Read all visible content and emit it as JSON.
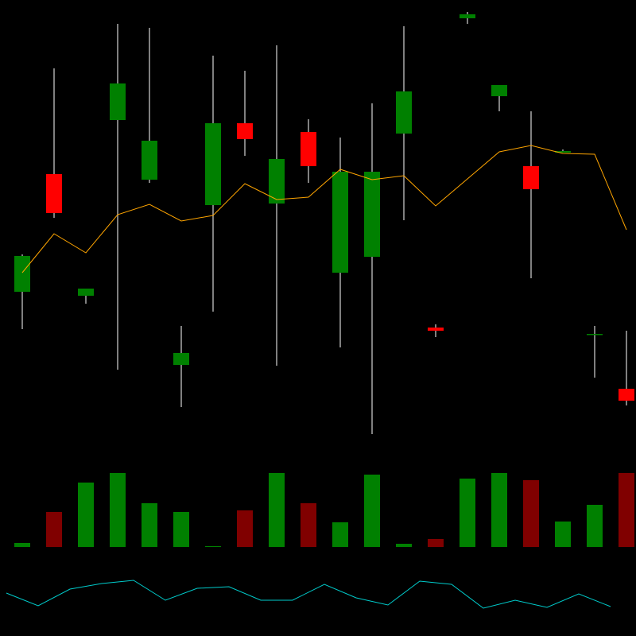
{
  "chart_data": [
    {
      "type": "candlestick",
      "up_color": "#008000",
      "down_color": "#ff0000",
      "wick_color": "#aaaaaa",
      "ylim": [
        0,
        560
      ],
      "open": [
        193,
        341,
        188,
        409,
        334,
        101,
        302,
        405,
        304,
        394,
        217,
        237,
        392,
        148,
        537,
        439,
        351,
        368,
        140,
        71
      ],
      "high": [
        240,
        474,
        197,
        530,
        525,
        150,
        490,
        471,
        503,
        410,
        387,
        430,
        527,
        152,
        545,
        453,
        420,
        372,
        150,
        144
      ],
      "low": [
        146,
        286,
        178,
        95,
        330,
        48,
        168,
        364,
        100,
        330,
        123,
        14,
        283,
        136,
        530,
        420,
        210,
        368,
        85,
        50
      ],
      "close": [
        238,
        292,
        197,
        455,
        383,
        116,
        405,
        385,
        360,
        351,
        344,
        344,
        445,
        144,
        542,
        453,
        322,
        370,
        140,
        56
      ],
      "series": [
        {
          "color": "#ffa500",
          "values": [
            217,
            266,
            242,
            290,
            303,
            282,
            289,
            329,
            309,
            312,
            347,
            334,
            339,
            301,
            335,
            369,
            377,
            367,
            366,
            271
          ]
        }
      ]
    },
    {
      "type": "bar",
      "ylim": [
        0,
        100
      ],
      "up_color": "#008000",
      "down_color": "#800000",
      "values": [
        5,
        44,
        81,
        93,
        55,
        44,
        1,
        46,
        93,
        55,
        31,
        91,
        4,
        10,
        86,
        93,
        84,
        32,
        53,
        93
      ]
    },
    {
      "type": "line",
      "ylim": [
        0,
        100
      ],
      "color": "#00cccc",
      "values": [
        54,
        38,
        59,
        66,
        70,
        45,
        60,
        62,
        45,
        45,
        65,
        48,
        39,
        69,
        65,
        35,
        45,
        36,
        53,
        37
      ]
    }
  ]
}
